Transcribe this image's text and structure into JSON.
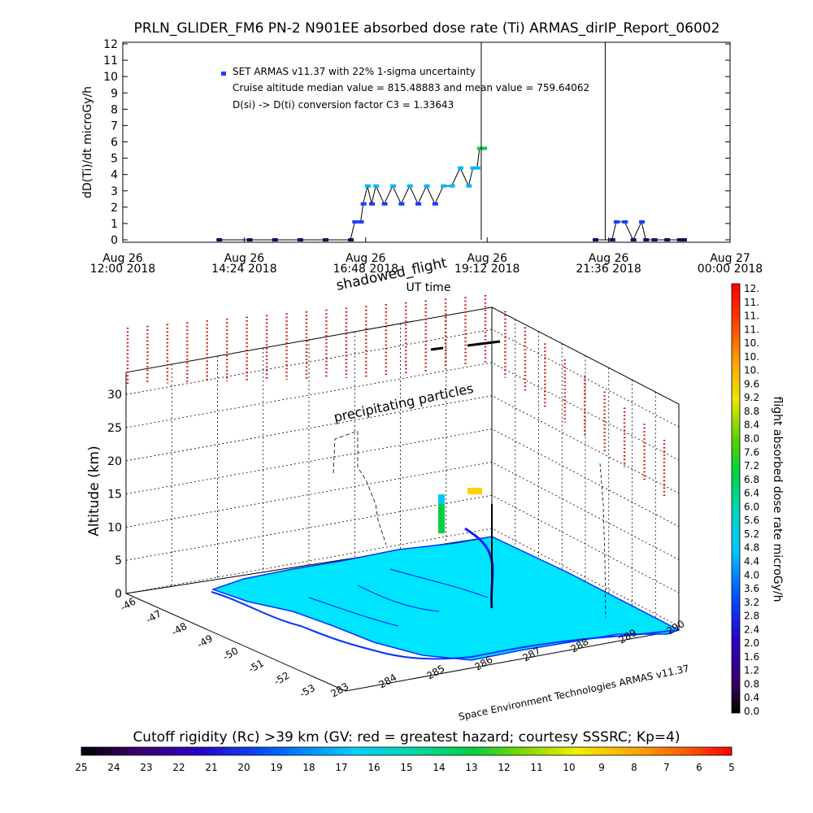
{
  "title": "PRLN_GLIDER_FM6 PN-2 N901EE absorbed dose rate (Ti) ARMAS_dirIP_Report_06002",
  "chart_data": [
    {
      "type": "line",
      "ylabel": "dD(Ti)/dt microGy/h",
      "xlabel": "UT time",
      "ylim": [
        0,
        12
      ],
      "y_ticks": [
        "0",
        "1",
        "2",
        "3",
        "4",
        "5",
        "6",
        "7",
        "8",
        "9",
        "10",
        "11",
        "12"
      ],
      "x_ticks": [
        {
          "day": "Aug 26",
          "time": "12:00 2018"
        },
        {
          "day": "Aug 26",
          "time": "14:24 2018"
        },
        {
          "day": "Aug 26",
          "time": "16:48 2018"
        },
        {
          "day": "Aug 26",
          "time": "19:12 2018"
        },
        {
          "day": "Aug 26",
          "time": "21:36 2018"
        },
        {
          "day": "Aug 27",
          "time": "00:00 2018"
        }
      ],
      "legend": [
        "SET ARMAS v11.37 with 22% 1-sigma uncertainty",
        "Cruise altitude median value = 815.48883 and mean value = 759.64062",
        "D(si) -> D(ti) conversion factor C3 = 1.33643"
      ],
      "series": [
        {
          "x": [
            "13:54",
            "14:30",
            "15:00",
            "15:30",
            "16:00",
            "16:30",
            "16:35",
            "16:42",
            "16:45",
            "16:50",
            "16:55",
            "17:00",
            "17:10",
            "17:20",
            "17:30",
            "17:40",
            "17:50",
            "18:00",
            "18:10",
            "18:20",
            "18:30",
            "18:40",
            "18:50",
            "18:55",
            "19:00",
            "19:03",
            "19:08",
            "21:20",
            "21:40",
            "21:45",
            "21:55",
            "22:05",
            "22:15",
            "22:20",
            "22:30",
            "22:45",
            "23:00",
            "23:05"
          ],
          "y": [
            0.0,
            0.0,
            0.0,
            0.0,
            0.0,
            0.0,
            1.1,
            1.1,
            2.2,
            3.3,
            2.2,
            3.3,
            2.2,
            3.3,
            2.2,
            3.3,
            2.2,
            3.3,
            2.2,
            3.3,
            3.3,
            4.4,
            3.3,
            4.4,
            4.4,
            5.6,
            5.6,
            0.0,
            0.0,
            1.1,
            1.1,
            0.0,
            1.1,
            0.0,
            0.0,
            0.0,
            0.0,
            0.0
          ]
        }
      ],
      "spike_times": [
        "19:05",
        "21:32"
      ]
    },
    {
      "type": "scatter",
      "ylabel": "Altitude (km)",
      "z_ticks": [
        "0",
        "5",
        "10",
        "15",
        "20",
        "25",
        "30"
      ],
      "lat_ticks": [
        "-46",
        "-47",
        "-48",
        "-49",
        "-50",
        "-51",
        "-52",
        "-53"
      ],
      "lon_ticks": [
        "283",
        "284",
        "285",
        "286",
        "287",
        "288",
        "289",
        "290"
      ],
      "annotations": [
        "shadowed_flight",
        "precipitating particles"
      ],
      "credit": "Space Environment Technologies ARMAS v11.37"
    },
    {
      "type": "heatmap",
      "label": "flight absorbed dose rate microGy/h",
      "ticks": [
        "12.",
        "11.",
        "11.",
        "11.",
        "10.",
        "10.",
        "10.",
        "9.6",
        "9.2",
        "8.8",
        "8.4",
        "8.0",
        "7.6",
        "7.2",
        "6.8",
        "6.4",
        "6.0",
        "5.6",
        "5.2",
        "4.8",
        "4.4",
        "4.0",
        "3.6",
        "3.2",
        "2.8",
        "2.4",
        "2.0",
        "1.6",
        "1.2",
        "0.8",
        "0.4",
        "0.0"
      ]
    },
    {
      "type": "heatmap",
      "label": "Cutoff rigidity (Rc) >39 km (GV: red = greatest hazard; courtesy SSSRC; Kp=4)",
      "ticks": [
        "25",
        "24",
        "23",
        "22",
        "21",
        "20",
        "19",
        "18",
        "17",
        "16",
        "15",
        "14",
        "13",
        "12",
        "11",
        "10",
        "9",
        "8",
        "7",
        "6",
        "5"
      ]
    }
  ],
  "colors": {
    "axes": "#000000",
    "ocean": "#00e5ff",
    "land_outline": "#0033ff",
    "hazard_points": "#d40000",
    "flight_low": "#2a0060",
    "flight_mid": "#00b7ff"
  }
}
